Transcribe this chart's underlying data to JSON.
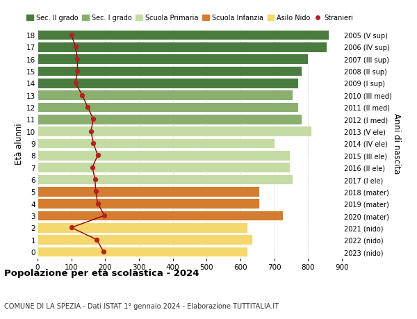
{
  "ages": [
    18,
    17,
    16,
    15,
    14,
    13,
    12,
    11,
    10,
    9,
    8,
    7,
    6,
    5,
    4,
    3,
    2,
    1,
    0
  ],
  "years": [
    "2005 (V sup)",
    "2006 (IV sup)",
    "2007 (III sup)",
    "2008 (II sup)",
    "2009 (I sup)",
    "2010 (III med)",
    "2011 (II med)",
    "2012 (I med)",
    "2013 (V ele)",
    "2014 (IV ele)",
    "2015 (III ele)",
    "2016 (II ele)",
    "2017 (I ele)",
    "2018 (mater)",
    "2019 (mater)",
    "2020 (mater)",
    "2021 (nido)",
    "2022 (nido)",
    "2023 (nido)"
  ],
  "bar_values": [
    860,
    855,
    800,
    780,
    770,
    755,
    770,
    780,
    810,
    700,
    745,
    745,
    755,
    655,
    655,
    725,
    620,
    635,
    620
  ],
  "bar_colors": [
    "#4a7c3f",
    "#4a7c3f",
    "#4a7c3f",
    "#4a7c3f",
    "#4a7c3f",
    "#8aaf6e",
    "#8aaf6e",
    "#8aaf6e",
    "#c5dba4",
    "#c5dba4",
    "#c5dba4",
    "#c5dba4",
    "#c5dba4",
    "#d47c30",
    "#d47c30",
    "#d47c30",
    "#f5d76e",
    "#f5d76e",
    "#f5d76e"
  ],
  "stranieri_values": [
    100,
    112,
    118,
    118,
    112,
    132,
    148,
    165,
    158,
    165,
    178,
    162,
    170,
    172,
    178,
    198,
    100,
    175,
    195
  ],
  "title": "Popolazione per età scolastica - 2024",
  "subtitle": "COMUNE DI LA SPEZIA - Dati ISTAT 1° gennaio 2024 - Elaborazione TUTTITALIA.IT",
  "ylabel_left": "Età alunni",
  "ylabel_right": "Anni di nascita",
  "xlim": [
    0,
    900
  ],
  "xticks": [
    0,
    100,
    200,
    300,
    400,
    500,
    600,
    700,
    800,
    900
  ],
  "legend_labels": [
    "Sec. II grado",
    "Sec. I grado",
    "Scuola Primaria",
    "Scuola Infanzia",
    "Asilo Nido",
    "Stranieri"
  ],
  "legend_colors": [
    "#4a7c3f",
    "#8aaf6e",
    "#c5dba4",
    "#d47c30",
    "#f5d76e",
    "#b22222"
  ],
  "stranieri_line_color": "#8b0000",
  "stranieri_dot_color": "#b22222",
  "bg_color": "#ffffff",
  "bar_height": 0.85
}
